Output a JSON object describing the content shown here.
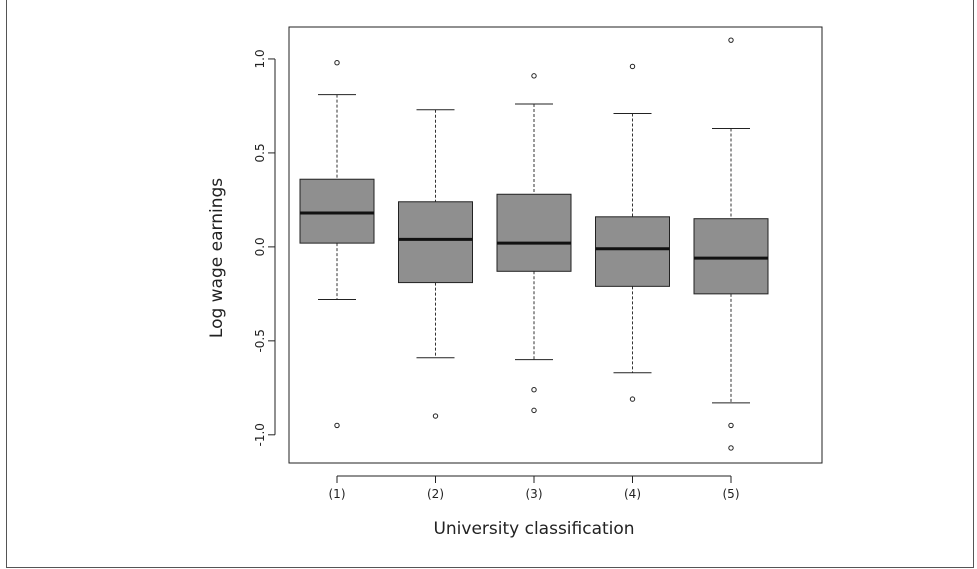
{
  "chart_data": {
    "type": "boxplot",
    "title": "",
    "xlabel": "University classification",
    "ylabel": "Log wage earnings",
    "ylim": [
      -1.15,
      1.17
    ],
    "yticks": [
      "-1.0",
      "-0.5",
      "0.0",
      "0.5",
      "1.0"
    ],
    "ytick_values": [
      -1.0,
      -0.5,
      0.0,
      0.5,
      1.0
    ],
    "categories": [
      "(1)",
      "(2)",
      "(3)",
      "(4)",
      "(5)"
    ],
    "box_color": "#8f8f8f",
    "grid": false,
    "boxes": [
      {
        "category": "(1)",
        "whisker_low": -0.28,
        "q1": 0.02,
        "median": 0.18,
        "q3": 0.36,
        "whisker_high": 0.81,
        "outliers": [
          0.98,
          -0.95
        ]
      },
      {
        "category": "(2)",
        "whisker_low": -0.59,
        "q1": -0.19,
        "median": 0.04,
        "q3": 0.24,
        "whisker_high": 0.73,
        "outliers": [
          -0.9
        ]
      },
      {
        "category": "(3)",
        "whisker_low": -0.6,
        "q1": -0.13,
        "median": 0.02,
        "q3": 0.28,
        "whisker_high": 0.76,
        "outliers": [
          0.91,
          -0.76,
          -0.87
        ]
      },
      {
        "category": "(4)",
        "whisker_low": -0.67,
        "q1": -0.21,
        "median": -0.01,
        "q3": 0.16,
        "whisker_high": 0.71,
        "outliers": [
          0.96,
          -0.81
        ]
      },
      {
        "category": "(5)",
        "whisker_low": -0.83,
        "q1": -0.25,
        "median": -0.06,
        "q3": 0.15,
        "whisker_high": 0.63,
        "outliers": [
          1.1,
          -0.95,
          -1.07
        ]
      }
    ]
  }
}
